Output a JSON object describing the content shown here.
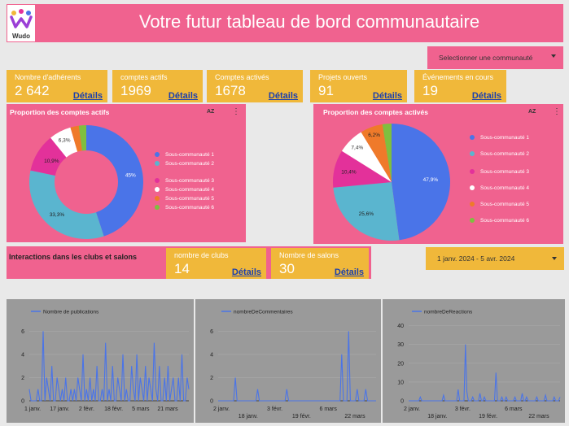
{
  "header": {
    "logo_text": "Wudo",
    "title": "Votre futur tableau de bord communautaire",
    "community_select": "Selectionner une communauté"
  },
  "kpis": [
    {
      "label": "Nombre d'adhérents",
      "value": "2 642",
      "link": "Détails"
    },
    {
      "label": "comptes actifs",
      "value": "1969",
      "link": "Détails"
    },
    {
      "label": "Comptes activés",
      "value": "1678",
      "link": "Détails"
    },
    {
      "label": "Projets ouverts",
      "value": "91",
      "link": "Détails"
    },
    {
      "label": "Événements en cours",
      "value": "19",
      "link": "Détails"
    }
  ],
  "pie_actifs": {
    "title": "Proportion des comptes actifs",
    "sort_icon": "AZ",
    "menu_icon": "⋮"
  },
  "pie_actives": {
    "title": "Proportion des comptes activés",
    "sort_icon": "AZ",
    "menu_icon": "⋮"
  },
  "interactions": {
    "title": "Interactions dans les clubs et salons",
    "clubs": {
      "label": "nombre de clubs",
      "value": "14",
      "link": "Détails"
    },
    "salons": {
      "label": "Nombre de salons",
      "value": "30",
      "link": "Détails"
    },
    "date_range": "1 janv. 2024 - 5 avr. 2024"
  },
  "colors": {
    "pink": "#f0628f",
    "yellow": "#f0b83a",
    "blue": "#4a74e8",
    "teal": "#5ab5cf",
    "magenta": "#e3319a",
    "white": "#ffffff",
    "orange": "#ef7a2a",
    "green": "#7fbf3f",
    "link": "#1a3fae"
  },
  "chart_data": [
    {
      "type": "pie",
      "title": "Proportion des comptes actifs",
      "donut": true,
      "categories": [
        "Sous-communauté 1",
        "Sous-communauté 2",
        "Sous-communauté 3",
        "Sous-communauté 4",
        "Sous-communauté 5",
        "Sous-communauté 6"
      ],
      "values": [
        45,
        33.3,
        10.9,
        6.3,
        2.4,
        2.1
      ],
      "data_labels": [
        "45%",
        "33,3%",
        "10,9%",
        "6,3%",
        "",
        ""
      ],
      "legend": "right"
    },
    {
      "type": "pie",
      "title": "Proportion des comptes activés",
      "donut": false,
      "categories": [
        "Sous-communauté 1",
        "Sous-communauté 2",
        "Sous-communauté 3",
        "Sous-communauté 4",
        "Sous-communauté 5",
        "Sous-communauté 6"
      ],
      "values": [
        47.9,
        25.6,
        10.4,
        7.4,
        6.2,
        2.5
      ],
      "data_labels": [
        "47,9%",
        "25,6%",
        "10,4%",
        "7,4%",
        "6,2%",
        ""
      ],
      "legend": "right"
    },
    {
      "type": "line",
      "series": [
        {
          "name": "Nombre de publications",
          "values": [
            1,
            0,
            0,
            0,
            0,
            1,
            0,
            0,
            6,
            0,
            2,
            1,
            0,
            3,
            0,
            0,
            2,
            1,
            0,
            1,
            0,
            2,
            0,
            0,
            1,
            0,
            1,
            0,
            2,
            1,
            0,
            4,
            0,
            1,
            0,
            2,
            0,
            1,
            0,
            3,
            0,
            0,
            1,
            0,
            5,
            0,
            1,
            0,
            3,
            0,
            0,
            2,
            1,
            0,
            4,
            0,
            1,
            0,
            0,
            3,
            1,
            0,
            4,
            0,
            2,
            1,
            0,
            3,
            0,
            2,
            1,
            0,
            5,
            1,
            0,
            3,
            0,
            0,
            2,
            0,
            3,
            0,
            1,
            2,
            0,
            0,
            2,
            0,
            4,
            0,
            0,
            2,
            1
          ]
        }
      ],
      "x_ticks": [
        "1 janv.",
        "17 janv.",
        "2 févr.",
        "18 févr.",
        "5 mars",
        "21 mars"
      ],
      "y_ticks": [
        0,
        2,
        4,
        6
      ],
      "ylim": [
        0,
        6.8
      ],
      "legend": "top"
    },
    {
      "type": "line",
      "series": [
        {
          "name": "nombreDeCommentaires",
          "values": [
            0,
            0,
            0,
            0,
            0,
            0,
            0,
            0,
            0,
            0,
            2,
            0,
            0,
            0,
            0,
            0,
            0,
            0,
            0,
            0,
            0,
            0,
            0,
            1,
            0,
            0,
            0,
            0,
            0,
            0,
            0,
            0,
            0,
            0,
            0,
            0,
            0,
            0,
            0,
            0,
            1,
            0,
            0,
            0,
            0,
            0,
            0,
            0,
            0,
            0,
            0,
            0,
            0,
            0,
            0,
            0,
            0,
            0,
            0,
            0,
            0,
            0,
            0,
            0,
            0,
            0,
            0,
            0,
            0,
            0,
            0,
            0,
            4,
            0,
            0,
            0,
            6,
            0,
            0,
            0,
            0,
            1,
            0,
            0,
            0,
            0,
            1,
            0,
            0,
            0,
            0,
            0,
            0
          ]
        }
      ],
      "x_ticks": [
        "2 janv.",
        "18 janv.",
        "3 févr.",
        "19 févr.",
        "6 mars",
        "22 mars"
      ],
      "y_ticks": [
        0,
        2,
        4,
        6
      ],
      "ylim": [
        0,
        6.8
      ],
      "legend": "top"
    },
    {
      "type": "line",
      "series": [
        {
          "name": "nombreDeReactions",
          "values": [
            0,
            0,
            0,
            0,
            0,
            0,
            0,
            0,
            2,
            0,
            0,
            0,
            0,
            0,
            0,
            0,
            0,
            0,
            0,
            0,
            0,
            0,
            0,
            0,
            3,
            0,
            0,
            0,
            0,
            0,
            0,
            0,
            0,
            0,
            6,
            0,
            0,
            0,
            0,
            30,
            5,
            0,
            0,
            0,
            2,
            0,
            0,
            0,
            0,
            4,
            0,
            0,
            2,
            0,
            0,
            0,
            0,
            0,
            0,
            0,
            15,
            0,
            0,
            0,
            2,
            0,
            0,
            2,
            0,
            0,
            0,
            0,
            0,
            2,
            0,
            0,
            0,
            0,
            4,
            0,
            0,
            2,
            0,
            0,
            0,
            0,
            0,
            0,
            2,
            0,
            0,
            0,
            0,
            0,
            3,
            0,
            0,
            0,
            0,
            0,
            2,
            0,
            0,
            0,
            2
          ]
        }
      ],
      "x_ticks": [
        "2 janv.",
        "18 janv.",
        "3 févr.",
        "19 févr.",
        "6 mars",
        "22 mars"
      ],
      "y_ticks": [
        0,
        10,
        20,
        30,
        40
      ],
      "ylim": [
        0,
        42
      ],
      "legend": "top"
    }
  ]
}
